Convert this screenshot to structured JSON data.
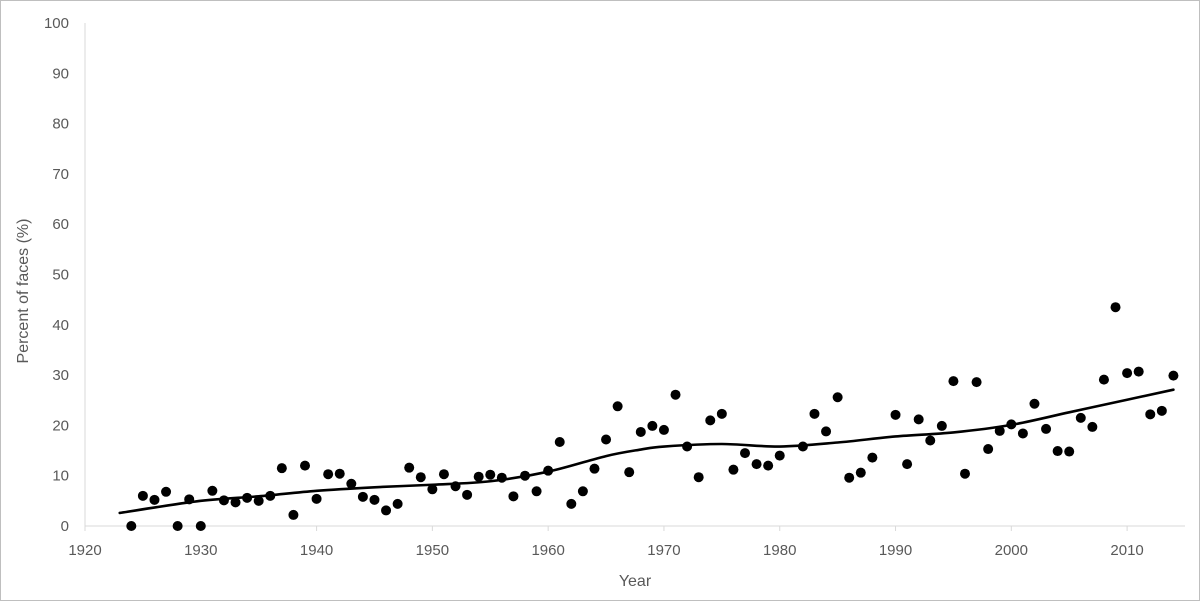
{
  "chart_data": {
    "type": "scatter",
    "xlabel": "Year",
    "ylabel": "Percent of faces (%)",
    "xlim": [
      1920,
      2015
    ],
    "ylim": [
      0,
      100
    ],
    "x_ticks": [
      1920,
      1930,
      1940,
      1950,
      1960,
      1970,
      1980,
      1990,
      2000,
      2010
    ],
    "y_ticks": [
      0,
      10,
      20,
      30,
      40,
      50,
      60,
      70,
      80,
      90,
      100
    ],
    "grid": false,
    "legend": "none",
    "colors": {
      "points": "#000000",
      "trend": "#000000",
      "axis": "#d9d9d9",
      "text": "#595959"
    },
    "points": [
      [
        1924,
        0
      ],
      [
        1925,
        6
      ],
      [
        1926,
        5.2
      ],
      [
        1927,
        6.8
      ],
      [
        1928,
        0
      ],
      [
        1929,
        5.3
      ],
      [
        1930,
        0
      ],
      [
        1931,
        7
      ],
      [
        1932,
        5.1
      ],
      [
        1933,
        4.7
      ],
      [
        1934,
        5.6
      ],
      [
        1935,
        5
      ],
      [
        1936,
        6
      ],
      [
        1937,
        11.5
      ],
      [
        1938,
        2.2
      ],
      [
        1939,
        12
      ],
      [
        1940,
        5.4
      ],
      [
        1941,
        10.3
      ],
      [
        1942,
        10.4
      ],
      [
        1943,
        8.4
      ],
      [
        1944,
        5.8
      ],
      [
        1945,
        5.2
      ],
      [
        1946,
        3.1
      ],
      [
        1947,
        4.4
      ],
      [
        1948,
        11.6
      ],
      [
        1949,
        9.7
      ],
      [
        1950,
        7.3
      ],
      [
        1951,
        10.3
      ],
      [
        1952,
        7.9
      ],
      [
        1953,
        6.2
      ],
      [
        1954,
        9.8
      ],
      [
        1955,
        10.2
      ],
      [
        1956,
        9.6
      ],
      [
        1957,
        5.9
      ],
      [
        1958,
        10
      ],
      [
        1959,
        6.9
      ],
      [
        1960,
        11
      ],
      [
        1961,
        16.7
      ],
      [
        1962,
        4.4
      ],
      [
        1963,
        6.9
      ],
      [
        1964,
        11.4
      ],
      [
        1965,
        17.2
      ],
      [
        1966,
        23.8
      ],
      [
        1967,
        10.7
      ],
      [
        1968,
        18.7
      ],
      [
        1969,
        19.9
      ],
      [
        1970,
        19.1
      ],
      [
        1971,
        26.1
      ],
      [
        1972,
        15.8
      ],
      [
        1973,
        9.7
      ],
      [
        1974,
        21
      ],
      [
        1975,
        22.3
      ],
      [
        1976,
        11.2
      ],
      [
        1977,
        14.5
      ],
      [
        1978,
        12.3
      ],
      [
        1979,
        12
      ],
      [
        1980,
        14
      ],
      [
        1982,
        15.8
      ],
      [
        1983,
        22.3
      ],
      [
        1984,
        18.8
      ],
      [
        1985,
        25.6
      ],
      [
        1986,
        9.6
      ],
      [
        1987,
        10.6
      ],
      [
        1988,
        13.6
      ],
      [
        1990,
        22.1
      ],
      [
        1991,
        12.3
      ],
      [
        1992,
        21.2
      ],
      [
        1993,
        17
      ],
      [
        1994,
        19.9
      ],
      [
        1995,
        28.8
      ],
      [
        1996,
        10.4
      ],
      [
        1997,
        28.6
      ],
      [
        1998,
        15.3
      ],
      [
        1999,
        18.9
      ],
      [
        2000,
        20.2
      ],
      [
        2001,
        18.4
      ],
      [
        2002,
        24.3
      ],
      [
        2003,
        19.3
      ],
      [
        2004,
        14.9
      ],
      [
        2005,
        14.8
      ],
      [
        2006,
        21.5
      ],
      [
        2007,
        19.7
      ],
      [
        2008,
        29.1
      ],
      [
        2009,
        43.5
      ],
      [
        2010,
        30.4
      ],
      [
        2011,
        30.7
      ],
      [
        2012,
        22.2
      ],
      [
        2013,
        22.9
      ],
      [
        2014,
        29.9
      ]
    ],
    "trend": [
      [
        1923,
        2.6
      ],
      [
        1930,
        5.0
      ],
      [
        1935,
        5.9
      ],
      [
        1940,
        7.0
      ],
      [
        1945,
        7.7
      ],
      [
        1950,
        8.2
      ],
      [
        1955,
        8.9
      ],
      [
        1960,
        10.8
      ],
      [
        1965,
        13.9
      ],
      [
        1968,
        15.2
      ],
      [
        1970,
        15.8
      ],
      [
        1975,
        16.3
      ],
      [
        1980,
        15.8
      ],
      [
        1985,
        16.6
      ],
      [
        1990,
        17.8
      ],
      [
        1995,
        18.6
      ],
      [
        2000,
        20.1
      ],
      [
        2005,
        22.6
      ],
      [
        2010,
        25.1
      ],
      [
        2014,
        27.1
      ]
    ]
  }
}
